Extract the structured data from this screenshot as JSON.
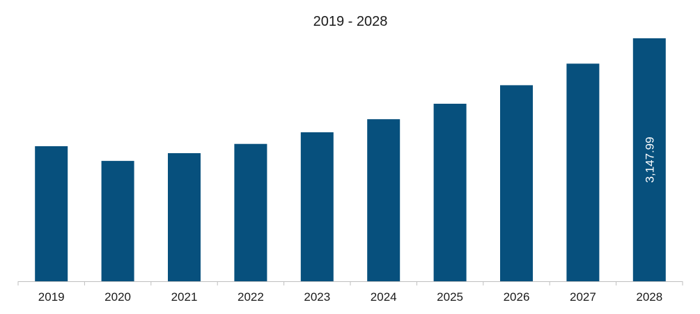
{
  "chart_data": {
    "type": "bar",
    "title": "2019 - 2028",
    "xlabel": "",
    "ylabel": "",
    "categories": [
      "2019",
      "2020",
      "2021",
      "2022",
      "2023",
      "2024",
      "2025",
      "2026",
      "2027",
      "2028"
    ],
    "values": [
      1750,
      1560,
      1660,
      1780,
      1930,
      2100,
      2300,
      2540,
      2820,
      3147.99
    ],
    "data_labels": [
      "",
      "",
      "",
      "",
      "",
      "",
      "",
      "",
      "",
      "3,147.99"
    ],
    "ylim": [
      0,
      3200
    ],
    "grid": false,
    "legend": "none",
    "colors": {
      "bar": "#07507d",
      "axis": "#bfbfbf",
      "text": "#1a1a1a",
      "data_label": "#ffffff"
    }
  }
}
